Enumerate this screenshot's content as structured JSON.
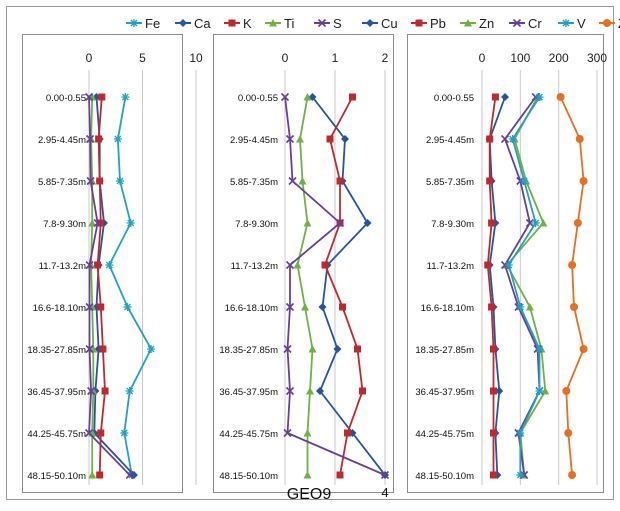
{
  "chart_data": [
    {
      "type": "line",
      "categories": [
        "0.00-0.55",
        "2.95-4.45m",
        "5.85-7.35m",
        "7.8-9.30m",
        "11.7-13.2m",
        "16.6-18.10m",
        "18.35-27.85m",
        "36.45-37.95m",
        "44.25-45.75m",
        "48.15-50.10m"
      ],
      "xlim": [
        0,
        10
      ],
      "xticks": [
        "0",
        "5",
        "10"
      ],
      "series": [
        {
          "name": "Fe",
          "color": "#1fa3c4",
          "marker": "star",
          "values": [
            3.4,
            2.7,
            2.9,
            3.9,
            1.9,
            3.6,
            5.8,
            3.8,
            3.3,
            4.0
          ]
        },
        {
          "name": "Ca",
          "color": "#2255a4",
          "marker": "diamond",
          "values": [
            0.7,
            1.0,
            1.0,
            1.4,
            0.9,
            0.7,
            0.9,
            0.6,
            0.5,
            4.2
          ]
        },
        {
          "name": "K",
          "color": "#c0282d",
          "marker": "square",
          "values": [
            1.2,
            0.9,
            1.0,
            1.1,
            0.8,
            1.1,
            1.3,
            1.5,
            1.1,
            1.0
          ]
        },
        {
          "name": "Ti",
          "color": "#6db33f",
          "marker": "triangle",
          "values": [
            0.3,
            0.2,
            0.3,
            0.3,
            0.2,
            0.3,
            0.4,
            0.4,
            0.3,
            0.3
          ]
        },
        {
          "name": "S",
          "color": "#6a3d9a",
          "marker": "x",
          "values": [
            0.0,
            0.1,
            0.15,
            0.8,
            0.05,
            0.05,
            0.05,
            0.2,
            0.0,
            3.8
          ]
        }
      ]
    },
    {
      "type": "line",
      "categories": [
        "0.00-0.55",
        "2.95-4.45m",
        "5.85-7.35m",
        "7.8-9.30m",
        "11.7-13.2m",
        "16.6-18.10m",
        "18.35-27.85m",
        "36.45-37.95m",
        "44.25-45.75m",
        "48.15-50.10m"
      ],
      "xlim": [
        0,
        2
      ],
      "xticks": [
        "0",
        "1",
        "2"
      ],
      "title": "GEO9",
      "annotation": "4",
      "series": [
        {
          "name": "Ca",
          "color": "#2255a4",
          "marker": "diamond",
          "values": [
            0.55,
            1.2,
            1.15,
            1.65,
            0.85,
            0.75,
            1.05,
            0.7,
            1.35,
            2.0
          ]
        },
        {
          "name": "K",
          "color": "#c0282d",
          "marker": "square",
          "values": [
            1.35,
            0.9,
            1.1,
            1.1,
            0.8,
            1.15,
            1.45,
            1.55,
            1.25,
            1.1
          ]
        },
        {
          "name": "Ti",
          "color": "#6db33f",
          "marker": "triangle",
          "values": [
            0.45,
            0.3,
            0.35,
            0.45,
            0.25,
            0.4,
            0.55,
            0.5,
            0.45,
            0.45
          ]
        },
        {
          "name": "S",
          "color": "#6a3d9a",
          "marker": "x",
          "values": [
            0.0,
            0.1,
            0.15,
            1.1,
            0.1,
            0.1,
            0.05,
            0.1,
            0.05,
            2.0
          ]
        }
      ]
    },
    {
      "type": "line",
      "categories": [
        "0.00-0.55",
        "2.95-4.45m",
        "5.85-7.35m",
        "7.8-9.30m",
        "11.7-13.2m",
        "16.6-18.10m",
        "18.35-27.85m",
        "36.45-37.95m",
        "44.25-45.75m",
        "48.15-50.10m"
      ],
      "xlim": [
        0,
        300
      ],
      "xticks": [
        "0",
        "100",
        "200",
        "300"
      ],
      "series": [
        {
          "name": "Cu",
          "color": "#2255a4",
          "marker": "diamond",
          "values": [
            60,
            20,
            25,
            35,
            20,
            30,
            35,
            45,
            35,
            40
          ]
        },
        {
          "name": "Pb",
          "color": "#c0282d",
          "marker": "square",
          "values": [
            35,
            20,
            20,
            25,
            15,
            25,
            30,
            30,
            30,
            30
          ]
        },
        {
          "name": "Zn",
          "color": "#6db33f",
          "marker": "triangle",
          "values": [
            145,
            85,
            115,
            160,
            65,
            125,
            155,
            165,
            100,
            110
          ]
        },
        {
          "name": "Cr",
          "color": "#6a3d9a",
          "marker": "x",
          "values": [
            140,
            60,
            100,
            125,
            60,
            95,
            145,
            150,
            95,
            110
          ]
        },
        {
          "name": "V",
          "color": "#1fa3c4",
          "marker": "star",
          "values": [
            150,
            80,
            110,
            140,
            70,
            100,
            150,
            150,
            100,
            100
          ]
        },
        {
          "name": "Zr",
          "color": "#e86f1f",
          "marker": "circle",
          "values": [
            205,
            255,
            265,
            250,
            235,
            240,
            265,
            220,
            225,
            235
          ]
        }
      ]
    }
  ],
  "legends": [
    {
      "items": [
        {
          "name": "Fe",
          "color": "#1fa3c4",
          "marker": "star"
        },
        {
          "name": "Ca",
          "color": "#2255a4",
          "marker": "diamond"
        },
        {
          "name": "K",
          "color": "#c0282d",
          "marker": "square"
        },
        {
          "name": "Ti",
          "color": "#6db33f",
          "marker": "triangle"
        },
        {
          "name": "S",
          "color": "#6a3d9a",
          "marker": "x"
        }
      ]
    },
    {
      "items": [
        {
          "name": "Cu",
          "color": "#2255a4",
          "marker": "diamond"
        },
        {
          "name": "Pb",
          "color": "#c0282d",
          "marker": "square"
        },
        {
          "name": "Zn",
          "color": "#6db33f",
          "marker": "triangle"
        },
        {
          "name": "Cr",
          "color": "#6a3d9a",
          "marker": "x"
        },
        {
          "name": "V",
          "color": "#1fa3c4",
          "marker": "star"
        },
        {
          "name": "Zr",
          "color": "#e86f1f",
          "marker": "circle"
        }
      ]
    }
  ]
}
